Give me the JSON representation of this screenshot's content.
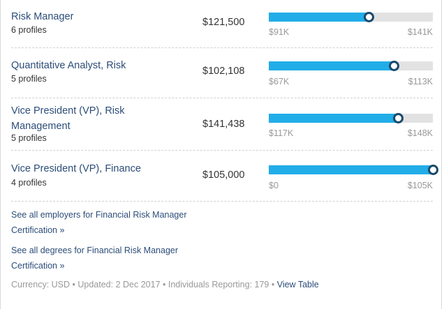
{
  "rows": [
    {
      "title": "Risk Manager",
      "profiles": "6 profiles",
      "salary": "$121,500",
      "salary_value": 121500,
      "min_label": "$91K",
      "max_label": "$141K",
      "min": 91000,
      "max": 141000
    },
    {
      "title": "Quantitative Analyst, Risk",
      "profiles": "5 profiles",
      "salary": "$102,108",
      "salary_value": 102108,
      "min_label": "$67K",
      "max_label": "$113K",
      "min": 67000,
      "max": 113000
    },
    {
      "title": "Vice President (VP), Risk Management",
      "profiles": "5 profiles",
      "salary": "$141,438",
      "salary_value": 141438,
      "min_label": "$117K",
      "max_label": "$148K",
      "min": 117000,
      "max": 148000
    },
    {
      "title": "Vice President (VP), Finance",
      "profiles": "4 profiles",
      "salary": "$105,000",
      "salary_value": 105000,
      "min_label": "$0",
      "max_label": "$105K",
      "min": 0,
      "max": 105000
    }
  ],
  "colors": {
    "bar_fill": "#22ade8",
    "bar_track": "#e2e2e2",
    "knob_border": "#1a4a6b",
    "link": "#2c4d78"
  },
  "links": {
    "employers": "See all employers for Financial Risk Manager Certification »",
    "degrees": "See all degrees for Financial Risk Manager Certification »"
  },
  "footer": {
    "currency": "Currency: USD",
    "updated": "Updated: 2 Dec 2017",
    "reporting": "Individuals Reporting: 179",
    "sep": " • ",
    "view_table": "View Table"
  }
}
